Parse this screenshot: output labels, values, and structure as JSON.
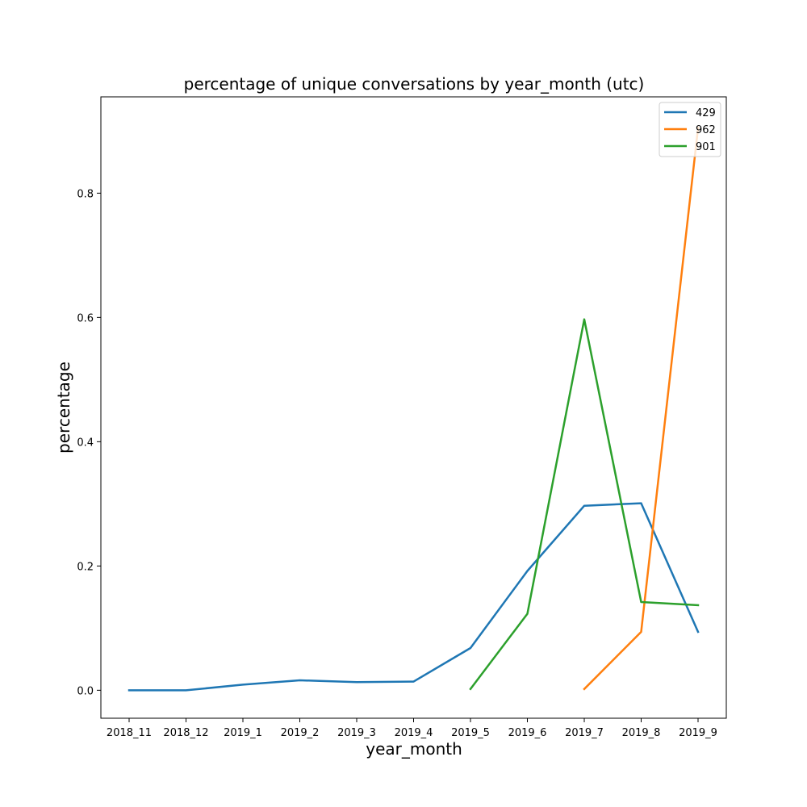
{
  "chart_data": {
    "type": "line",
    "title": "percentage of unique conversations by year_month (utc)",
    "xlabel": "year_month",
    "ylabel": "percentage",
    "categories": [
      "2018_11",
      "2018_12",
      "2019_1",
      "2019_2",
      "2019_3",
      "2019_4",
      "2019_5",
      "2019_6",
      "2019_7",
      "2019_8",
      "2019_9"
    ],
    "ylim": [
      -0.045,
      0.955
    ],
    "yticks": [
      0.0,
      0.2,
      0.4,
      0.6,
      0.8
    ],
    "ytick_labels": [
      "0.0",
      "0.2",
      "0.4",
      "0.6",
      "0.8"
    ],
    "legend_position": "top-right",
    "grid": false,
    "series": [
      {
        "name": "429",
        "color": "#1f77b4",
        "values": [
          0.0,
          0.0,
          0.009,
          0.016,
          0.013,
          0.014,
          0.068,
          0.192,
          0.297,
          0.301,
          0.094
        ]
      },
      {
        "name": "962",
        "color": "#ff7f0e",
        "values": [
          null,
          null,
          null,
          null,
          null,
          null,
          null,
          null,
          0.002,
          0.094,
          0.905
        ]
      },
      {
        "name": "901",
        "color": "#2ca02c",
        "values": [
          null,
          null,
          null,
          null,
          null,
          null,
          0.002,
          0.123,
          0.597,
          0.142,
          0.137
        ]
      }
    ]
  }
}
